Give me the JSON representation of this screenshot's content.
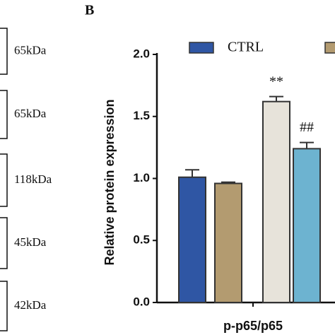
{
  "blots": [
    {
      "label": "65kDa"
    },
    {
      "label": "65kDa"
    },
    {
      "label": "118kDa"
    },
    {
      "label": "45kDa"
    },
    {
      "label": "42kDa"
    }
  ],
  "chart_data": {
    "type": "bar",
    "panel": "B",
    "ylabel": "Relative protein expression",
    "categories": [
      "p-p65/p65"
    ],
    "series": [
      {
        "name": "CTRL",
        "color": "#2f56a4",
        "values": [
          1.01
        ],
        "errors": [
          0.06
        ]
      },
      {
        "color": "#b39b70",
        "values": [
          0.96
        ],
        "errors": [
          0.01
        ]
      },
      {
        "color": "#e7e3da",
        "values": [
          1.62
        ],
        "errors": [
          0.04
        ],
        "annotation": "**"
      },
      {
        "color": "#6db3d0",
        "values": [
          1.24
        ],
        "errors": [
          0.05
        ],
        "annotation": "##"
      }
    ],
    "ylim": [
      0,
      2
    ],
    "yticks": [
      {
        "value": 0,
        "label": "0.0"
      },
      0.5,
      {
        "value": 1,
        "label": "1.0"
      },
      1.5,
      {
        "value": 2,
        "label": "2.0"
      }
    ]
  }
}
